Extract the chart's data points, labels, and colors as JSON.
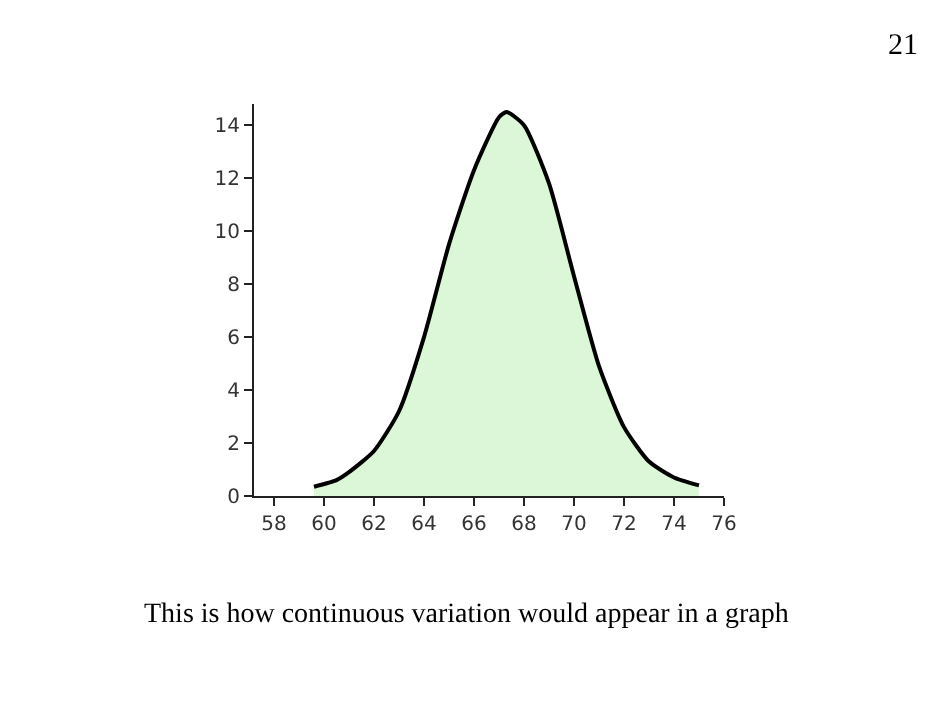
{
  "chart_data": {
    "type": "area",
    "x": [
      59.6,
      60.5,
      61,
      62,
      63,
      64,
      65,
      66,
      67,
      67.3,
      68,
      69,
      70,
      71,
      72,
      73,
      74,
      75
    ],
    "series": [
      {
        "color": "#dcf7d8",
        "values": [
          0.35,
          0.6,
          0.9,
          1.7,
          3.2,
          6.0,
          9.5,
          12.3,
          14.3,
          14.5,
          14.0,
          11.8,
          8.3,
          4.9,
          2.6,
          1.3,
          0.7,
          0.4
        ]
      }
    ],
    "xlim": [
      57.2,
      76
    ],
    "xticks": [
      58,
      60,
      62,
      64,
      66,
      68,
      70,
      72,
      74,
      76
    ],
    "ylim": [
      0,
      14.8
    ],
    "yticks": [
      0,
      2,
      4,
      6,
      8,
      10,
      12,
      14
    ],
    "grid": false,
    "marker": "none",
    "line_style": "solid",
    "annotations": [
      "21",
      "This is how continuous variation would appear in a graph"
    ]
  }
}
